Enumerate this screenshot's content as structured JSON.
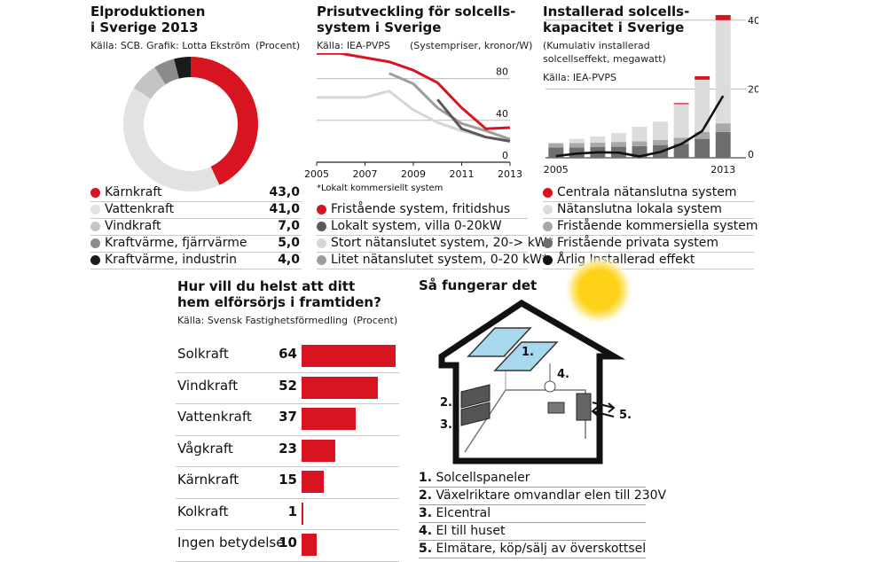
{
  "donut": {
    "title_line1": "Elproduktionen",
    "title_line2": "i Sverige 2013",
    "source": "Källa: SCB. Grafik: Lotta Ekström",
    "unit": "(Procent)",
    "items": [
      {
        "label": "Kärnkraft",
        "value": "43,0",
        "num": 43.0,
        "color": "#d7141f"
      },
      {
        "label": "Vattenkraft",
        "value": "41,0",
        "num": 41.0,
        "color": "#e2e2e2"
      },
      {
        "label": "Vindkraft",
        "value": "7,0",
        "num": 7.0,
        "color": "#c4c4c4"
      },
      {
        "label": "Kraftvärme, fjärrvärme",
        "value": "5,0",
        "num": 5.0,
        "color": "#8c8c8c"
      },
      {
        "label": "Kraftvärme, industrin",
        "value": "4,0",
        "num": 4.0,
        "color": "#1a1a1a"
      }
    ]
  },
  "price": {
    "title_line1": "Prisutveckling för solcells-",
    "title_line2": "system i Sverige",
    "source": "Källa: IEA-PVPS",
    "unit": "(Systempriser, kronor/W)",
    "footnote": "*Lokalt kommersiellt system",
    "x_ticks": [
      "2005",
      "2007",
      "2009",
      "2011",
      "2013"
    ],
    "y_ticks": [
      "80",
      "40",
      "0"
    ],
    "legend": [
      {
        "label": "Fristående system, fritidshus",
        "color": "#d7141f"
      },
      {
        "label": "Lokalt system, villa 0-20kW",
        "color": "#595959"
      },
      {
        "label": "Stort nätanslutet system, 20-> kW*",
        "color": "#d6d6d6"
      },
      {
        "label": "Litet nätanslutet system, 0-20 kW*",
        "color": "#9e9e9e"
      }
    ]
  },
  "capacity": {
    "title_line1": "Installerad solcells-",
    "title_line2": "kapacitet i Sverige",
    "subtitle_line1": "(Kumulativ installerad",
    "subtitle_line2": "solcellseffekt, megawatt)",
    "source": "Källa: IEA-PVPS",
    "x_ticks": [
      "2005",
      "2013"
    ],
    "y_ticks": [
      "40",
      "20",
      "0"
    ],
    "legend": [
      {
        "label": "Centrala nätanslutna system",
        "color": "#d7141f"
      },
      {
        "label": "Nätanslutna lokala system",
        "color": "#dcdcdc"
      },
      {
        "label": "Fristående kommersiella system",
        "color": "#a8a8a8"
      },
      {
        "label": "Fristående privata system",
        "color": "#6e6e6e"
      },
      {
        "label": "Årlig Installerad effekt",
        "color": "#111111"
      }
    ]
  },
  "survey": {
    "title_line1": "Hur vill du helst att ditt",
    "title_line2": "hem elförsörjs i framtiden?",
    "source": "Källa: Svensk Fastighetsförmedling",
    "unit": "(Procent)"
  },
  "howto": {
    "title": "Så fungerar det",
    "marker_1": "1.",
    "marker_2": "2.",
    "marker_3": "3.",
    "marker_4": "4.",
    "marker_5": "5.",
    "steps": [
      {
        "num": "1.",
        "text": "Solcellspaneler"
      },
      {
        "num": "2.",
        "text": "Växelriktare omvandlar elen till 230V"
      },
      {
        "num": "3.",
        "text": "Elcentral"
      },
      {
        "num": "4.",
        "text": "El till huset"
      },
      {
        "num": "5.",
        "text": "Elmätare, köp/sälj av överskottsel"
      }
    ]
  },
  "chart_data": [
    {
      "type": "pie",
      "title": "Elproduktionen i Sverige 2013",
      "categories": [
        "Kärnkraft",
        "Vattenkraft",
        "Vindkraft",
        "Kraftvärme, fjärrvärme",
        "Kraftvärme, industrin"
      ],
      "values": [
        43.0,
        41.0,
        7.0,
        5.0,
        4.0
      ]
    },
    {
      "type": "line",
      "title": "Prisutveckling för solcellssystem i Sverige",
      "ylabel": "(Systempriser, kronor/W)",
      "x": [
        2005,
        2006,
        2007,
        2008,
        2009,
        2010,
        2011,
        2012,
        2013
      ],
      "ylim": [
        0,
        100
      ],
      "series": [
        {
          "name": "Fristående system, fritidshus",
          "values": [
            104,
            104,
            100,
            96,
            88,
            76,
            52,
            32,
            33
          ]
        },
        {
          "name": "Lokalt system, villa 0-20kW",
          "values": [
            null,
            null,
            null,
            null,
            null,
            60,
            32,
            24,
            20
          ]
        },
        {
          "name": "Stort nätanslutet system, 20-> kW*",
          "values": [
            62,
            62,
            62,
            68,
            50,
            38,
            30,
            24,
            21
          ]
        },
        {
          "name": "Litet nätanslutet system, 0-20 kW*",
          "values": [
            null,
            null,
            null,
            85,
            75,
            52,
            37,
            30,
            22
          ]
        }
      ]
    },
    {
      "type": "bar",
      "title": "Installerad solcellskapacitet i Sverige",
      "ylabel": "(Kumulativ installerad solcellseffekt, megawatt)",
      "categories": [
        "2005",
        "2006",
        "2007",
        "2008",
        "2009",
        "2010",
        "2011",
        "2012",
        "2013"
      ],
      "ylim": [
        0,
        42
      ],
      "series": [
        {
          "name": "Fristående privata system",
          "values": [
            3.0,
            3.0,
            3.1,
            3.2,
            3.4,
            3.7,
            4.0,
            5.5,
            7.5
          ]
        },
        {
          "name": "Fristående kommersiella system",
          "values": [
            1.2,
            1.3,
            1.3,
            1.4,
            1.4,
            1.5,
            1.8,
            2.0,
            2.5
          ]
        },
        {
          "name": "Nätanslutna lokala system",
          "values": [
            0.2,
            1.2,
            1.8,
            2.6,
            4.2,
            5.3,
            9.8,
            15.2,
            30.0
          ]
        },
        {
          "name": "Centrala nätanslutna system",
          "values": [
            0,
            0,
            0,
            0,
            0,
            0,
            0.3,
            1.0,
            1.5
          ]
        },
        {
          "name": "Årlig Installerad effekt",
          "values": [
            0.5,
            1.2,
            1.6,
            1.5,
            0.4,
            1.7,
            4.0,
            7.8,
            18.0
          ]
        }
      ]
    },
    {
      "type": "bar",
      "title": "Hur vill du helst att ditt hem elförsörjs i framtiden?",
      "ylabel": "(Procent)",
      "categories": [
        "Solkraft",
        "Vindkraft",
        "Vattenkraft",
        "Vågkraft",
        "Kärnkraft",
        "Kolkraft",
        "Ingen betydelse"
      ],
      "values": [
        64,
        52,
        37,
        23,
        15,
        1,
        10
      ],
      "xlim": [
        0,
        64
      ]
    }
  ]
}
